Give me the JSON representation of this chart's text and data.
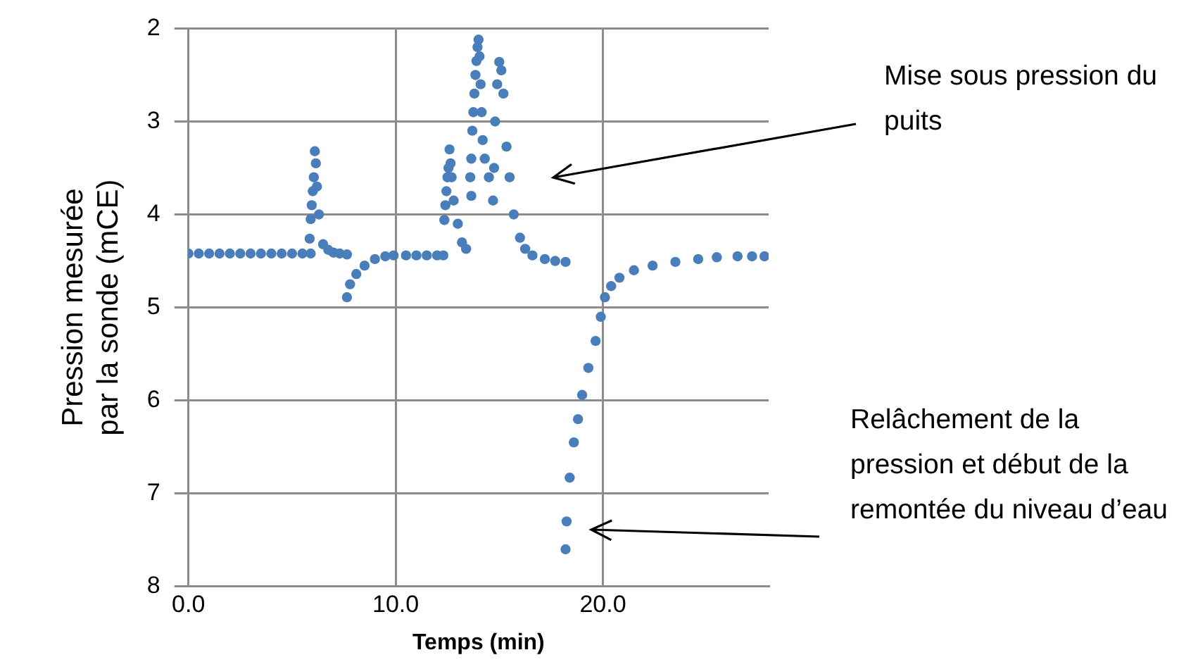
{
  "chart_data": {
    "type": "scatter",
    "xlabel": "Temps (min)",
    "ylabel": "Pression mesurée par la sonde (mCE)",
    "x": [
      0,
      0.5,
      1,
      1.5,
      2,
      2.5,
      3,
      3.5,
      4,
      4.5,
      5,
      5.5,
      5.9,
      5.85,
      5.9,
      5.95,
      6.0,
      6.05,
      6.1,
      6.15,
      6.2,
      6.3,
      6.5,
      6.75,
      7.0,
      7.3,
      7.65,
      7.65,
      7.8,
      8.1,
      8.5,
      9.0,
      9.5,
      9.9,
      10.5,
      11,
      11.5,
      12,
      12.3,
      12.35,
      12.4,
      12.45,
      12.5,
      12.55,
      12.6,
      12.65,
      12.7,
      12.8,
      13.0,
      13.2,
      13.4,
      13.65,
      13.6,
      13.65,
      13.7,
      13.75,
      13.8,
      13.85,
      13.9,
      13.95,
      14.0,
      14.05,
      14.1,
      14.15,
      14.2,
      14.3,
      14.5,
      14.7,
      14.75,
      14.8,
      14.9,
      15.0,
      15.1,
      15.2,
      15.35,
      15.5,
      15.7,
      16.0,
      16.25,
      16.6,
      17.2,
      17.7,
      18.2,
      18.2,
      18.25,
      18.4,
      18.6,
      18.8,
      19.0,
      19.3,
      19.65,
      19.9,
      20.1,
      20.4,
      20.8,
      21.5,
      22.4,
      23.5,
      24.6,
      25.5,
      26.5,
      27.2,
      27.8
    ],
    "values": [
      4.42,
      4.42,
      4.42,
      4.42,
      4.42,
      4.42,
      4.42,
      4.42,
      4.42,
      4.42,
      4.42,
      4.42,
      4.42,
      4.26,
      4.05,
      3.9,
      3.75,
      3.6,
      3.32,
      3.45,
      3.7,
      4.0,
      4.32,
      4.38,
      4.41,
      4.42,
      4.43,
      4.89,
      4.75,
      4.64,
      4.55,
      4.48,
      4.45,
      4.44,
      4.44,
      4.44,
      4.44,
      4.44,
      4.44,
      4.06,
      3.9,
      3.75,
      3.6,
      3.5,
      3.3,
      3.45,
      3.6,
      3.85,
      4.1,
      4.3,
      4.37,
      3.8,
      3.6,
      3.4,
      3.1,
      2.9,
      2.7,
      2.5,
      2.35,
      2.2,
      2.12,
      2.3,
      2.6,
      2.9,
      3.2,
      3.4,
      3.6,
      3.85,
      3.5,
      3.0,
      2.6,
      2.36,
      2.45,
      2.7,
      3.27,
      3.6,
      4.0,
      4.25,
      4.37,
      4.44,
      4.48,
      4.5,
      4.51,
      7.6,
      7.3,
      6.83,
      6.45,
      6.2,
      5.94,
      5.65,
      5.36,
      5.1,
      4.89,
      4.77,
      4.68,
      4.6,
      4.55,
      4.51,
      4.48,
      4.46,
      4.45,
      4.45,
      4.45
    ],
    "color": "#4a7ebb",
    "marker": "circle",
    "grid": true,
    "xlim": [
      0,
      28
    ],
    "xticks": [
      {
        "value": 0,
        "label": "0.0"
      },
      {
        "value": 10,
        "label": "10.0"
      },
      {
        "value": 20,
        "label": "20.0"
      }
    ],
    "ylim": [
      8,
      2
    ],
    "yticks": [
      2,
      3,
      4,
      5,
      6,
      7,
      8
    ],
    "annotations": [
      "Mise sous pression du puits",
      "Relâchement de la pression et début de la remontée du niveau d’eau"
    ]
  }
}
